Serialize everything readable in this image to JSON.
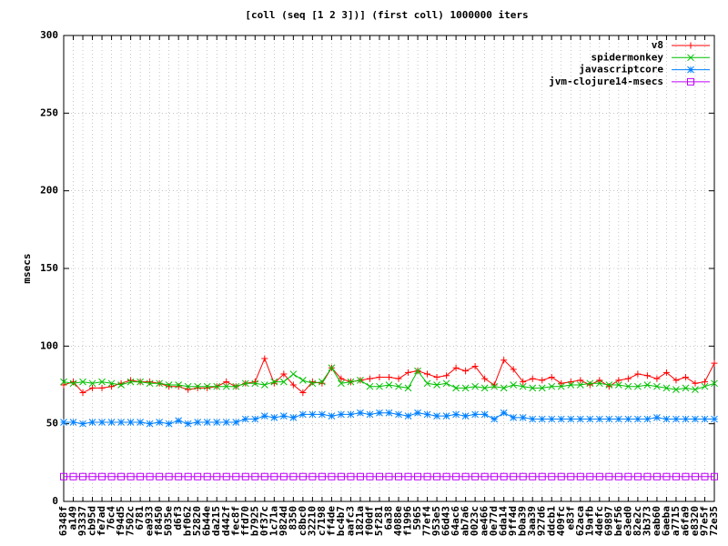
{
  "chart_data": {
    "type": "line",
    "title": "[coll (seq [1 2 3])] (first coll) 1000000 iters",
    "y_label": "msecs",
    "categories": [
      "6348f",
      "a149",
      "93337",
      "cb95d",
      "fe7ad",
      "76c4",
      "f94d5",
      "7502c",
      "6781",
      "ea933",
      "f8450",
      "5035e",
      "d6f3",
      "bf062",
      "52820",
      "6b44e",
      "da215",
      "d442f",
      "fec8f",
      "ffd70",
      "b7925",
      "0f37c",
      "1c71a",
      "9824d",
      "8350",
      "c8bc0",
      "32210",
      "c7198",
      "ff4de",
      "bc4b7",
      "aafc3",
      "1821a",
      "f00df",
      "5f281",
      "6a38",
      "4088e",
      "f1996",
      "5965",
      "77ef4",
      "953e5",
      "66d43",
      "64ac6",
      "ab7a6",
      "0023c",
      "ae466",
      "0e77d",
      "6da14",
      "9ff4d",
      "b0a39",
      "3aa39",
      "927d6",
      "ddcb1",
      "409fc",
      "e83f",
      "62aca",
      "19afb",
      "4defc",
      "69897",
      "bef56",
      "e3ed0",
      "82e2c",
      "3b373",
      "eab60",
      "6aeba",
      "a7715",
      "a6fa9",
      "e8320",
      "97e5f",
      "72e35"
    ],
    "series": [
      {
        "name": "v8",
        "color": "#ff0000",
        "marker": "plus",
        "values": [
          75,
          77,
          70,
          73,
          73,
          74,
          76,
          78,
          77,
          77,
          76,
          74,
          74,
          72,
          73,
          73,
          74,
          77,
          74,
          76,
          77,
          92,
          76,
          82,
          75,
          70,
          77,
          76,
          86,
          79,
          77,
          78,
          79,
          80,
          80,
          79,
          83,
          84,
          82,
          80,
          81,
          86,
          84,
          87,
          79,
          75,
          91,
          85,
          77,
          79,
          78,
          80,
          76,
          77,
          78,
          75,
          78,
          74,
          78,
          79,
          82,
          81,
          79,
          83,
          78,
          80,
          76,
          77,
          89
        ]
      },
      {
        "name": "spidermonkey",
        "color": "#00c000",
        "marker": "cross",
        "values": [
          77,
          76,
          77,
          76,
          77,
          76,
          75,
          77,
          77,
          76,
          76,
          75,
          75,
          74,
          74,
          74,
          74,
          74,
          74,
          76,
          76,
          75,
          77,
          77,
          82,
          78,
          76,
          77,
          86,
          76,
          77,
          78,
          74,
          74,
          75,
          74,
          73,
          84,
          76,
          75,
          76,
          73,
          73,
          74,
          73,
          74,
          73,
          75,
          74,
          73,
          73,
          74,
          74,
          75,
          75,
          76,
          76,
          75,
          75,
          74,
          74,
          75,
          74,
          73,
          72,
          73,
          72,
          74,
          76
        ]
      },
      {
        "name": "javascriptcore",
        "color": "#0080ff",
        "marker": "star",
        "values": [
          51,
          51,
          50,
          51,
          51,
          51,
          51,
          51,
          51,
          50,
          51,
          50,
          52,
          50,
          51,
          51,
          51,
          51,
          51,
          53,
          53,
          55,
          54,
          55,
          54,
          56,
          56,
          56,
          55,
          56,
          56,
          57,
          56,
          57,
          57,
          56,
          55,
          57,
          56,
          55,
          55,
          56,
          55,
          56,
          56,
          53,
          57,
          54,
          54,
          53,
          53,
          53,
          53,
          53,
          53,
          53,
          53,
          53,
          53,
          53,
          53,
          53,
          54,
          53,
          53,
          53,
          53,
          53,
          53
        ]
      },
      {
        "name": "jvm-clojure14-msecs",
        "color": "#c000ff",
        "marker": "square",
        "values": [
          16,
          16,
          16,
          16,
          16,
          16,
          16,
          16,
          16,
          16,
          16,
          16,
          16,
          16,
          16,
          16,
          16,
          16,
          16,
          16,
          16,
          16,
          16,
          16,
          16,
          16,
          16,
          16,
          16,
          16,
          16,
          16,
          16,
          16,
          16,
          16,
          16,
          16,
          16,
          16,
          16,
          16,
          16,
          16,
          16,
          16,
          16,
          16,
          16,
          16,
          16,
          16,
          16,
          16,
          16,
          16,
          16,
          16,
          16,
          16,
          16,
          16,
          16,
          16,
          16,
          16,
          16,
          16,
          16
        ]
      }
    ],
    "ylim": [
      0,
      300
    ],
    "yticks": [
      0,
      50,
      100,
      150,
      200,
      250,
      300
    ],
    "grid": true,
    "legend": "top-right"
  }
}
